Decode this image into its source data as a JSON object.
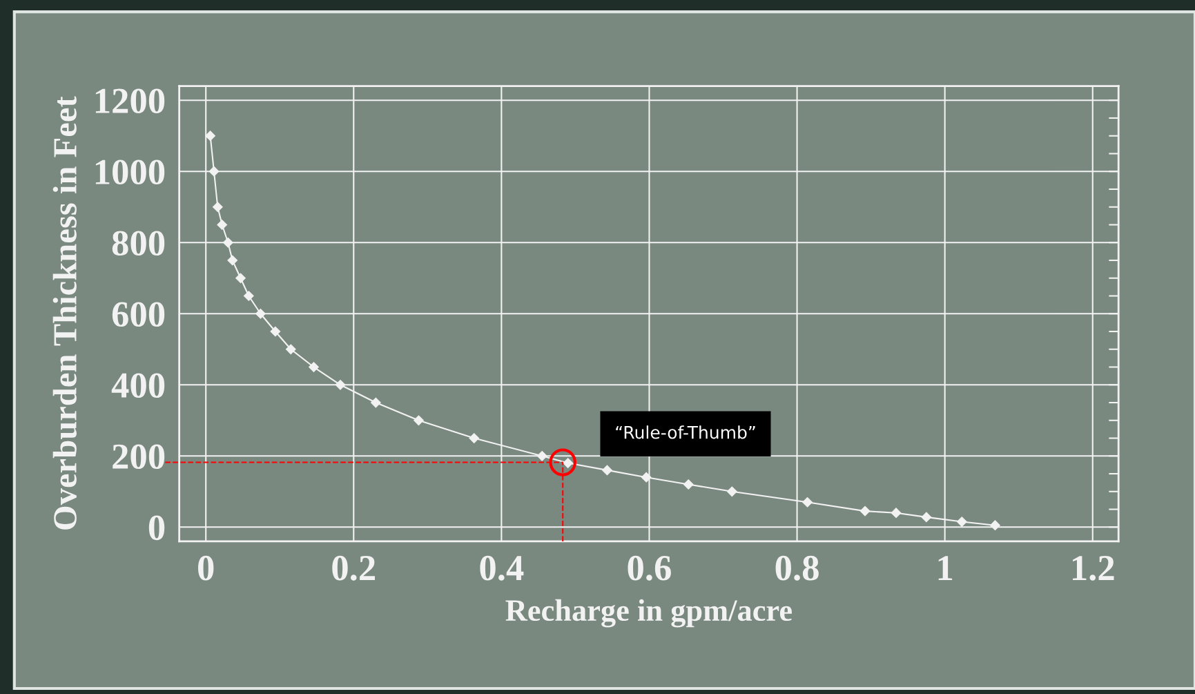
{
  "chart_data": {
    "type": "line",
    "xlabel": "Recharge in gpm/acre",
    "ylabel": "Overburden Thickness in Feet",
    "x": [
      0.006,
      0.011,
      0.016,
      0.022,
      0.03,
      0.036,
      0.047,
      0.058,
      0.074,
      0.094,
      0.115,
      0.146,
      0.182,
      0.23,
      0.288,
      0.363,
      0.455,
      0.49,
      0.543,
      0.596,
      0.653,
      0.712,
      0.814,
      0.892,
      0.934,
      0.975,
      1.023,
      1.068
    ],
    "series": [
      {
        "color": "#f2f2f2",
        "values": [
          1100,
          1000,
          900,
          850,
          800,
          750,
          700,
          650,
          600,
          550,
          500,
          450,
          400,
          350,
          300,
          250,
          200,
          180,
          160,
          140,
          120,
          100,
          70,
          45,
          40,
          28,
          15,
          5
        ]
      }
    ],
    "marker": "diamond",
    "line_style": "solid",
    "xlim": [
      -0.036,
      1.235
    ],
    "ylim": [
      -40,
      1240
    ],
    "xticks": [
      0,
      0.2,
      0.4,
      0.6,
      0.8,
      1,
      1.2
    ],
    "yticks": [
      0,
      200,
      400,
      600,
      800,
      1000,
      1200
    ],
    "grid": true,
    "ref_lines": [
      {
        "axis": "y",
        "value": 182,
        "color": "#ff0000",
        "line_style": "dashed"
      },
      {
        "axis": "x",
        "value": 0.483,
        "color": "#ff0000",
        "line_style": "dashed"
      }
    ],
    "annotations": [
      "“Rule-of-Thumb”"
    ]
  }
}
